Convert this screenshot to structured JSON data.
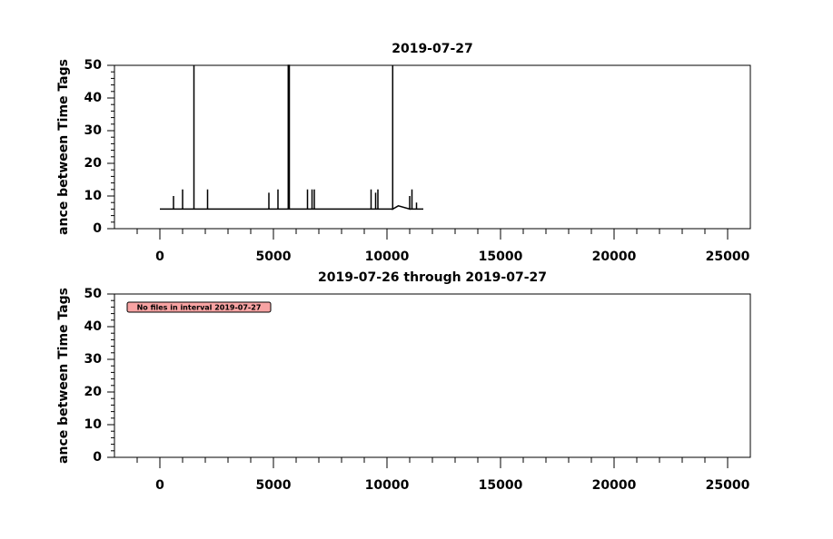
{
  "chart_data": [
    {
      "type": "line",
      "title": "2019-07-27",
      "y_label": "ance between Time Tags",
      "xlim": [
        -2000,
        26000
      ],
      "xticks": [
        0,
        5000,
        10000,
        15000,
        20000,
        25000
      ],
      "xminorticks": [
        -1000,
        1000,
        2000,
        3000,
        4000,
        6000,
        7000,
        8000,
        9000,
        11000,
        12000,
        13000,
        14000,
        16000,
        17000,
        18000,
        19000,
        21000,
        22000,
        23000,
        24000
      ],
      "ylim": [
        0,
        50
      ],
      "yticks": [
        0,
        10,
        20,
        30,
        40,
        50
      ],
      "yminorticks": [
        2,
        4,
        6,
        8,
        12,
        14,
        16,
        18,
        22,
        24,
        26,
        28,
        32,
        34,
        36,
        38,
        42,
        44,
        46,
        48
      ],
      "series": [
        {
          "color": "#000000",
          "x": [
            0,
            600,
            600,
            600,
            1000,
            1000,
            1000,
            1500,
            1500,
            1500,
            2100,
            2100,
            2100,
            4800,
            4800,
            4800,
            5200,
            5200,
            5200,
            5650,
            5650,
            5700,
            5700,
            6500,
            6500,
            6500,
            6700,
            6700,
            6700,
            6800,
            6800,
            6800,
            9300,
            9300,
            9300,
            9500,
            9500,
            9500,
            9600,
            9600,
            9600,
            10250,
            10250,
            10250,
            10500,
            11000,
            11000,
            11000,
            11100,
            11100,
            11100,
            11300,
            11300,
            11300,
            11600
          ],
          "values": [
            6,
            6,
            10,
            6,
            6,
            12,
            6,
            6,
            50,
            6,
            6,
            12,
            6,
            6,
            11,
            6,
            6,
            12,
            6,
            6,
            50,
            50,
            6,
            6,
            12,
            6,
            6,
            12,
            6,
            6,
            12,
            6,
            6,
            12,
            6,
            6,
            11,
            6,
            6,
            12,
            6,
            6,
            50,
            6,
            7,
            6,
            10,
            6,
            6,
            12,
            6,
            6,
            8,
            6,
            6
          ]
        }
      ]
    },
    {
      "type": "line",
      "title": "2019-07-26 through 2019-07-27",
      "y_label": "ance between Time Tags",
      "annotation": "No files in interval 2019-07-27",
      "xlim": [
        -2000,
        26000
      ],
      "xticks": [
        0,
        5000,
        10000,
        15000,
        20000,
        25000
      ],
      "xminorticks": [
        -1000,
        1000,
        2000,
        3000,
        4000,
        6000,
        7000,
        8000,
        9000,
        11000,
        12000,
        13000,
        14000,
        16000,
        17000,
        18000,
        19000,
        21000,
        22000,
        23000,
        24000
      ],
      "ylim": [
        0,
        50
      ],
      "yticks": [
        0,
        10,
        20,
        30,
        40,
        50
      ],
      "yminorticks": [
        2,
        4,
        6,
        8,
        12,
        14,
        16,
        18,
        22,
        24,
        26,
        28,
        32,
        34,
        36,
        38,
        42,
        44,
        46,
        48
      ],
      "series": []
    }
  ]
}
